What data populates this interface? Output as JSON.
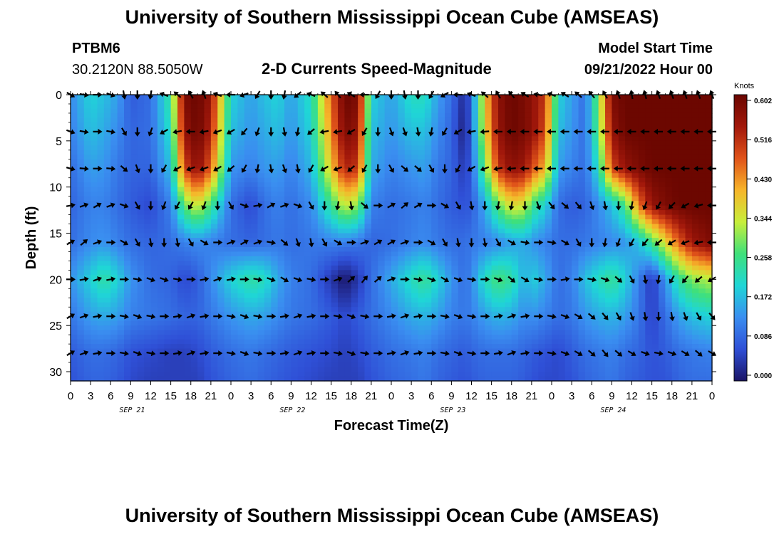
{
  "header": {
    "title": "University of Southern Mississippi Ocean Cube (AMSEAS)",
    "station_id": "PTBM6",
    "coordinates": "30.2120N  88.5050W",
    "product": "2-D Currents Speed-Magnitude",
    "model_start_label": "Model Start Time",
    "model_start_value": "09/21/2022 Hour 00"
  },
  "footer": {
    "title": "University of Southern Mississippi Ocean Cube (AMSEAS)"
  },
  "colors": {
    "scale": [
      "#1a1466",
      "#2f4fd6",
      "#3a8ef0",
      "#1fd6d6",
      "#3fe07a",
      "#c8ee3a",
      "#f7b52a",
      "#e0531a",
      "#a2180b",
      "#6a0600"
    ],
    "arrow": "#000000"
  },
  "chart_data": {
    "type": "heatmap",
    "title": "2-D Currents Speed-Magnitude",
    "xlabel": "Forecast Time(Z)",
    "ylabel": "Depth (ft)",
    "x_tick_labels": [
      "0",
      "3",
      "6",
      "9",
      "12",
      "15",
      "18",
      "21",
      "0",
      "3",
      "6",
      "9",
      "12",
      "15",
      "18",
      "21",
      "0",
      "3",
      "6",
      "9",
      "12",
      "15",
      "18",
      "21",
      "0",
      "3",
      "6",
      "9",
      "12",
      "15",
      "18",
      "21",
      "0"
    ],
    "x_range_hours": [
      0,
      96
    ],
    "date_labels": [
      {
        "label": "SEP 21",
        "hour": 9
      },
      {
        "label": "SEP 22",
        "hour": 33
      },
      {
        "label": "SEP 23",
        "hour": 57
      },
      {
        "label": "SEP 24",
        "hour": 81
      }
    ],
    "y_ticks": [
      0,
      5,
      10,
      15,
      20,
      25,
      30
    ],
    "ylim": [
      0,
      31
    ],
    "colorbar": {
      "unit": "Knots",
      "ticks": [
        "0.602",
        "0.516",
        "0.430",
        "0.344",
        "0.258",
        "0.172",
        "0.086",
        "0.000"
      ],
      "range": [
        0,
        0.602
      ]
    },
    "speed_keypoints": {
      "hours": [
        0,
        3,
        5,
        7,
        9,
        12,
        15,
        17,
        19,
        21,
        24,
        27,
        29,
        31,
        33,
        36,
        39,
        41,
        43,
        45,
        48,
        51,
        53,
        55,
        57,
        59,
        60,
        62,
        64,
        66,
        68,
        69,
        71,
        73,
        75,
        77,
        79,
        81,
        83,
        85,
        87,
        89,
        91,
        93,
        96
      ],
      "depths": [
        0,
        4,
        8,
        12,
        16,
        20,
        24,
        28,
        31
      ],
      "values": [
        [
          0.13,
          0.2,
          0.18,
          0.15,
          0.08,
          0.1,
          0.25,
          0.58,
          0.6,
          0.55,
          0.2,
          0.15,
          0.18,
          0.2,
          0.15,
          0.22,
          0.46,
          0.6,
          0.58,
          0.2,
          0.15,
          0.22,
          0.22,
          0.15,
          0.1,
          0.02,
          0.1,
          0.38,
          0.56,
          0.6,
          0.58,
          0.56,
          0.5,
          0.2,
          0.15,
          0.1,
          0.3,
          0.58,
          0.6,
          0.6,
          0.6,
          0.6,
          0.6,
          0.6,
          0.6
        ],
        [
          0.12,
          0.18,
          0.16,
          0.13,
          0.09,
          0.1,
          0.22,
          0.55,
          0.6,
          0.52,
          0.18,
          0.14,
          0.16,
          0.18,
          0.14,
          0.2,
          0.43,
          0.58,
          0.55,
          0.18,
          0.14,
          0.18,
          0.18,
          0.13,
          0.09,
          0.01,
          0.1,
          0.36,
          0.55,
          0.6,
          0.58,
          0.56,
          0.48,
          0.18,
          0.14,
          0.1,
          0.28,
          0.55,
          0.6,
          0.6,
          0.6,
          0.6,
          0.6,
          0.6,
          0.6
        ],
        [
          0.1,
          0.15,
          0.14,
          0.11,
          0.09,
          0.09,
          0.18,
          0.48,
          0.56,
          0.46,
          0.14,
          0.12,
          0.14,
          0.15,
          0.12,
          0.17,
          0.38,
          0.52,
          0.5,
          0.16,
          0.12,
          0.14,
          0.15,
          0.11,
          0.09,
          0.04,
          0.09,
          0.28,
          0.5,
          0.56,
          0.54,
          0.48,
          0.4,
          0.15,
          0.12,
          0.1,
          0.22,
          0.48,
          0.55,
          0.58,
          0.6,
          0.6,
          0.6,
          0.6,
          0.6
        ],
        [
          0.09,
          0.12,
          0.12,
          0.1,
          0.08,
          0.06,
          0.12,
          0.28,
          0.35,
          0.26,
          0.1,
          0.06,
          0.1,
          0.12,
          0.1,
          0.13,
          0.25,
          0.34,
          0.3,
          0.12,
          0.1,
          0.11,
          0.12,
          0.1,
          0.08,
          0.07,
          0.08,
          0.16,
          0.28,
          0.36,
          0.34,
          0.26,
          0.2,
          0.1,
          0.08,
          0.09,
          0.13,
          0.18,
          0.26,
          0.44,
          0.55,
          0.58,
          0.6,
          0.6,
          0.6
        ],
        [
          0.1,
          0.13,
          0.14,
          0.12,
          0.1,
          0.09,
          0.1,
          0.12,
          0.13,
          0.12,
          0.1,
          0.09,
          0.1,
          0.11,
          0.1,
          0.11,
          0.12,
          0.12,
          0.11,
          0.09,
          0.1,
          0.12,
          0.13,
          0.11,
          0.1,
          0.1,
          0.11,
          0.12,
          0.13,
          0.15,
          0.16,
          0.14,
          0.12,
          0.1,
          0.1,
          0.11,
          0.12,
          0.13,
          0.14,
          0.18,
          0.26,
          0.36,
          0.46,
          0.54,
          0.58
        ],
        [
          0.14,
          0.2,
          0.24,
          0.2,
          0.14,
          0.1,
          0.09,
          0.06,
          0.08,
          0.13,
          0.2,
          0.24,
          0.22,
          0.16,
          0.12,
          0.1,
          0.04,
          0.0,
          0.04,
          0.1,
          0.16,
          0.22,
          0.25,
          0.2,
          0.14,
          0.1,
          0.13,
          0.22,
          0.27,
          0.24,
          0.16,
          0.2,
          0.16,
          0.1,
          0.12,
          0.18,
          0.22,
          0.25,
          0.2,
          0.12,
          0.04,
          0.14,
          0.24,
          0.3,
          0.33
        ],
        [
          0.11,
          0.15,
          0.16,
          0.15,
          0.12,
          0.11,
          0.1,
          0.09,
          0.09,
          0.11,
          0.14,
          0.16,
          0.15,
          0.13,
          0.11,
          0.1,
          0.08,
          0.06,
          0.08,
          0.1,
          0.13,
          0.16,
          0.17,
          0.15,
          0.12,
          0.11,
          0.12,
          0.15,
          0.17,
          0.16,
          0.13,
          0.14,
          0.12,
          0.1,
          0.11,
          0.14,
          0.16,
          0.17,
          0.15,
          0.11,
          0.05,
          0.1,
          0.15,
          0.18,
          0.2
        ],
        [
          0.08,
          0.1,
          0.1,
          0.09,
          0.07,
          0.06,
          0.05,
          0.05,
          0.06,
          0.08,
          0.1,
          0.11,
          0.1,
          0.09,
          0.08,
          0.07,
          0.06,
          0.05,
          0.06,
          0.08,
          0.1,
          0.11,
          0.12,
          0.1,
          0.09,
          0.08,
          0.09,
          0.1,
          0.1,
          0.1,
          0.09,
          0.08,
          0.07,
          0.06,
          0.08,
          0.1,
          0.11,
          0.12,
          0.1,
          0.09,
          0.07,
          0.08,
          0.1,
          0.11,
          0.12
        ],
        [
          0.07,
          0.09,
          0.09,
          0.08,
          0.06,
          0.05,
          0.05,
          0.05,
          0.05,
          0.07,
          0.09,
          0.1,
          0.09,
          0.08,
          0.07,
          0.06,
          0.05,
          0.05,
          0.05,
          0.07,
          0.09,
          0.1,
          0.11,
          0.09,
          0.08,
          0.07,
          0.08,
          0.09,
          0.09,
          0.09,
          0.08,
          0.07,
          0.06,
          0.06,
          0.07,
          0.09,
          0.1,
          0.11,
          0.09,
          0.08,
          0.07,
          0.07,
          0.09,
          0.1,
          0.1
        ]
      ]
    },
    "arrows": {
      "depths": [
        0,
        4,
        8,
        12,
        16,
        20,
        24,
        28
      ],
      "hour_step": 2,
      "directions_deg_by_depth": [
        [
          30,
          10,
          0,
          20,
          80,
          90,
          100,
          200,
          220,
          240,
          250,
          200,
          180,
          160,
          120,
          90,
          100,
          140,
          200,
          220,
          230,
          210,
          180,
          120,
          90,
          80,
          90,
          120,
          150,
          180,
          200,
          220,
          240,
          230,
          210,
          190,
          200,
          210,
          220,
          230,
          240,
          250,
          260,
          255,
          250,
          250,
          250,
          250,
          250
        ],
        [
          20,
          10,
          0,
          10,
          60,
          90,
          110,
          150,
          170,
          180,
          170,
          160,
          150,
          130,
          110,
          90,
          80,
          100,
          140,
          170,
          170,
          150,
          120,
          90,
          70,
          70,
          80,
          100,
          120,
          150,
          170,
          175,
          180,
          180,
          180,
          180,
          180,
          180,
          180,
          180,
          180,
          180,
          180,
          180,
          180,
          180,
          180,
          180,
          180
        ],
        [
          15,
          5,
          0,
          5,
          40,
          70,
          90,
          120,
          150,
          160,
          160,
          150,
          140,
          120,
          100,
          80,
          70,
          80,
          120,
          150,
          160,
          140,
          120,
          90,
          60,
          40,
          40,
          60,
          90,
          120,
          150,
          160,
          170,
          175,
          180,
          180,
          180,
          180,
          180,
          180,
          180,
          180,
          180,
          180,
          180,
          180,
          180,
          180,
          180
        ],
        [
          -10,
          -20,
          -30,
          -20,
          20,
          60,
          90,
          110,
          120,
          120,
          110,
          90,
          60,
          20,
          -10,
          -30,
          -20,
          20,
          60,
          90,
          100,
          80,
          40,
          0,
          -30,
          -40,
          -30,
          0,
          30,
          60,
          80,
          90,
          100,
          100,
          90,
          70,
          50,
          40,
          50,
          70,
          80,
          90,
          100,
          110,
          120,
          135,
          150,
          165,
          180
        ],
        [
          -30,
          -40,
          -20,
          0,
          30,
          60,
          80,
          90,
          80,
          60,
          30,
          0,
          -20,
          -30,
          -20,
          10,
          40,
          70,
          80,
          60,
          30,
          0,
          -20,
          -30,
          -30,
          -20,
          0,
          30,
          60,
          80,
          90,
          80,
          60,
          30,
          10,
          0,
          10,
          30,
          60,
          90,
          100,
          110,
          120,
          130,
          140,
          150,
          160,
          170,
          180
        ],
        [
          0,
          -10,
          -20,
          -10,
          0,
          10,
          20,
          20,
          10,
          0,
          -10,
          -20,
          -10,
          0,
          10,
          20,
          30,
          20,
          10,
          0,
          -20,
          -40,
          -50,
          -40,
          -20,
          0,
          10,
          20,
          30,
          20,
          10,
          0,
          20,
          40,
          30,
          10,
          0,
          -10,
          0,
          10,
          20,
          40,
          60,
          80,
          100,
          120,
          130,
          140,
          150
        ],
        [
          -30,
          -20,
          -10,
          0,
          10,
          20,
          10,
          0,
          -10,
          -20,
          -10,
          0,
          10,
          20,
          10,
          0,
          -10,
          -20,
          -10,
          0,
          10,
          20,
          10,
          0,
          -10,
          -20,
          -10,
          0,
          10,
          20,
          10,
          0,
          -10,
          -20,
          -10,
          0,
          10,
          20,
          30,
          40,
          50,
          60,
          70,
          80,
          90,
          80,
          70,
          60,
          50
        ],
        [
          -30,
          -20,
          -10,
          0,
          10,
          20,
          10,
          0,
          -10,
          -20,
          -10,
          0,
          10,
          20,
          10,
          0,
          -10,
          -20,
          -10,
          0,
          10,
          20,
          10,
          0,
          -10,
          -20,
          -10,
          0,
          10,
          20,
          10,
          0,
          -10,
          -20,
          -10,
          0,
          10,
          20,
          30,
          40,
          50,
          40,
          30,
          20,
          10,
          20,
          30,
          40,
          30
        ]
      ]
    }
  }
}
